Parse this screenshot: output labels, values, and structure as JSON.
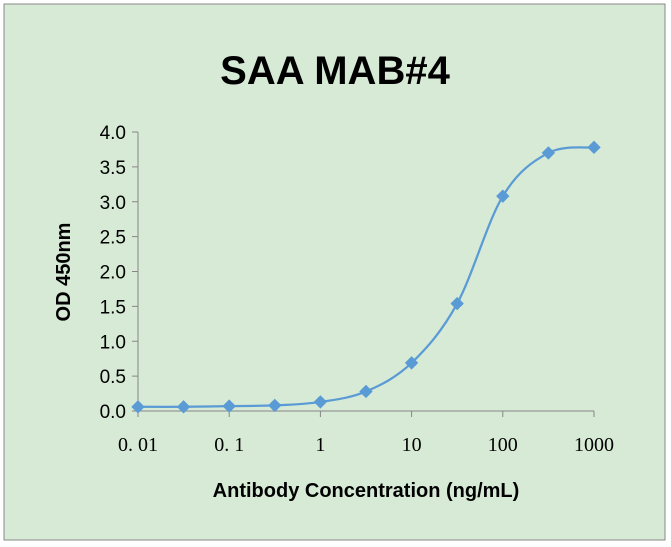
{
  "chart_data": {
    "type": "line",
    "title": "SAA MAB#4",
    "xlabel": "Antibody Concentration (ng/mL)",
    "ylabel": "OD 450nm",
    "x_scale": "log",
    "xlim": [
      0.01,
      1000
    ],
    "ylim": [
      0,
      4
    ],
    "x_ticks": [
      0.01,
      0.1,
      1,
      10,
      100,
      1000
    ],
    "x_tick_labels": [
      "0. 01",
      "0. 1",
      "1",
      "10",
      "100",
      "1000"
    ],
    "y_ticks": [
      0,
      0.5,
      1,
      1.5,
      2,
      2.5,
      3,
      3.5,
      4
    ],
    "y_tick_labels": [
      "0.0",
      "0.5",
      "1.0",
      "1.5",
      "2.0",
      "2.5",
      "3.0",
      "3.5",
      "4.0"
    ],
    "grid": false,
    "background_color": "#d6ead6",
    "series": [
      {
        "color": "#5b9bd5",
        "marker": "diamond",
        "smooth": true,
        "x": [
          0.01,
          0.0316,
          0.1,
          0.316,
          1,
          3.16,
          10,
          31.6,
          100,
          316,
          1000
        ],
        "y": [
          0.06,
          0.06,
          0.07,
          0.08,
          0.13,
          0.28,
          0.69,
          1.54,
          3.08,
          3.7,
          3.78
        ]
      }
    ]
  }
}
